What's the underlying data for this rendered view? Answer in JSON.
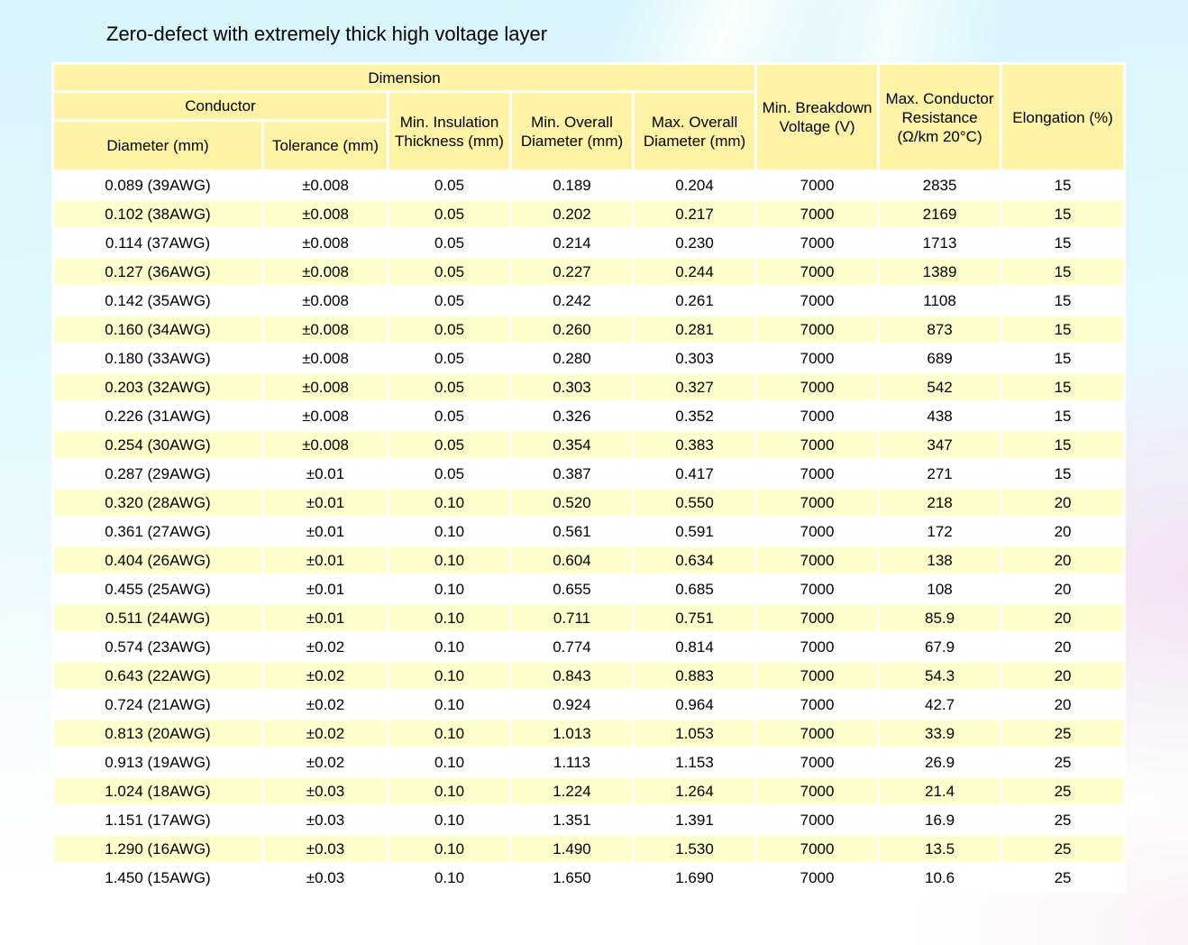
{
  "title": "Zero-defect with extremely thick high voltage layer",
  "colors": {
    "header_bg": "#FFF3A6",
    "row_bg": "#FFFFFF",
    "row_alt_bg": "#FFFFCC",
    "background_top": "#D8F5FB",
    "background_bottom": "#FFFFFF",
    "pink_wash": "#F6D8F0",
    "text": "#000000"
  },
  "table": {
    "header": {
      "dimension": "Dimension",
      "conductor": "Conductor",
      "diameter": "Diameter (mm)",
      "tolerance": "Tolerance (mm)",
      "min_insulation_thickness": "Min. Insulation Thickness (mm)",
      "min_overall_diameter": "Min. Overall Diameter (mm)",
      "max_overall_diameter": "Max. Overall Diameter (mm)",
      "min_breakdown_voltage": "Min. Breakdown Voltage (V)",
      "max_conductor_resistance": "Max. Conductor Resistance (Ω/km 20°C)",
      "elongation": "Elongation (%)"
    },
    "rows": [
      [
        "0.089 (39AWG)",
        "±0.008",
        "0.05",
        "0.189",
        "0.204",
        "7000",
        "2835",
        "15"
      ],
      [
        "0.102 (38AWG)",
        "±0.008",
        "0.05",
        "0.202",
        "0.217",
        "7000",
        "2169",
        "15"
      ],
      [
        "0.114 (37AWG)",
        "±0.008",
        "0.05",
        "0.214",
        "0.230",
        "7000",
        "1713",
        "15"
      ],
      [
        "0.127 (36AWG)",
        "±0.008",
        "0.05",
        "0.227",
        "0.244",
        "7000",
        "1389",
        "15"
      ],
      [
        "0.142 (35AWG)",
        "±0.008",
        "0.05",
        "0.242",
        "0.261",
        "7000",
        "1108",
        "15"
      ],
      [
        "0.160 (34AWG)",
        "±0.008",
        "0.05",
        "0.260",
        "0.281",
        "7000",
        "873",
        "15"
      ],
      [
        "0.180 (33AWG)",
        "±0.008",
        "0.05",
        "0.280",
        "0.303",
        "7000",
        "689",
        "15"
      ],
      [
        "0.203 (32AWG)",
        "±0.008",
        "0.05",
        "0.303",
        "0.327",
        "7000",
        "542",
        "15"
      ],
      [
        "0.226 (31AWG)",
        "±0.008",
        "0.05",
        "0.326",
        "0.352",
        "7000",
        "438",
        "15"
      ],
      [
        "0.254 (30AWG)",
        "±0.008",
        "0.05",
        "0.354",
        "0.383",
        "7000",
        "347",
        "15"
      ],
      [
        "0.287 (29AWG)",
        "±0.01",
        "0.05",
        "0.387",
        "0.417",
        "7000",
        "271",
        "15"
      ],
      [
        "0.320 (28AWG)",
        "±0.01",
        "0.10",
        "0.520",
        "0.550",
        "7000",
        "218",
        "20"
      ],
      [
        "0.361 (27AWG)",
        "±0.01",
        "0.10",
        "0.561",
        "0.591",
        "7000",
        "172",
        "20"
      ],
      [
        "0.404 (26AWG)",
        "±0.01",
        "0.10",
        "0.604",
        "0.634",
        "7000",
        "138",
        "20"
      ],
      [
        "0.455 (25AWG)",
        "±0.01",
        "0.10",
        "0.655",
        "0.685",
        "7000",
        "108",
        "20"
      ],
      [
        "0.511 (24AWG)",
        "±0.01",
        "0.10",
        "0.711",
        "0.751",
        "7000",
        "85.9",
        "20"
      ],
      [
        "0.574 (23AWG)",
        "±0.02",
        "0.10",
        "0.774",
        "0.814",
        "7000",
        "67.9",
        "20"
      ],
      [
        "0.643 (22AWG)",
        "±0.02",
        "0.10",
        "0.843",
        "0.883",
        "7000",
        "54.3",
        "20"
      ],
      [
        "0.724 (21AWG)",
        "±0.02",
        "0.10",
        "0.924",
        "0.964",
        "7000",
        "42.7",
        "20"
      ],
      [
        "0.813 (20AWG)",
        "±0.02",
        "0.10",
        "1.013",
        "1.053",
        "7000",
        "33.9",
        "25"
      ],
      [
        "0.913 (19AWG)",
        "±0.02",
        "0.10",
        "1.113",
        "1.153",
        "7000",
        "26.9",
        "25"
      ],
      [
        "1.024 (18AWG)",
        "±0.03",
        "0.10",
        "1.224",
        "1.264",
        "7000",
        "21.4",
        "25"
      ],
      [
        "1.151 (17AWG)",
        "±0.03",
        "0.10",
        "1.351",
        "1.391",
        "7000",
        "16.9",
        "25"
      ],
      [
        "1.290 (16AWG)",
        "±0.03",
        "0.10",
        "1.490",
        "1.530",
        "7000",
        "13.5",
        "25"
      ],
      [
        "1.450 (15AWG)",
        "±0.03",
        "0.10",
        "1.650",
        "1.690",
        "7000",
        "10.6",
        "25"
      ]
    ]
  }
}
